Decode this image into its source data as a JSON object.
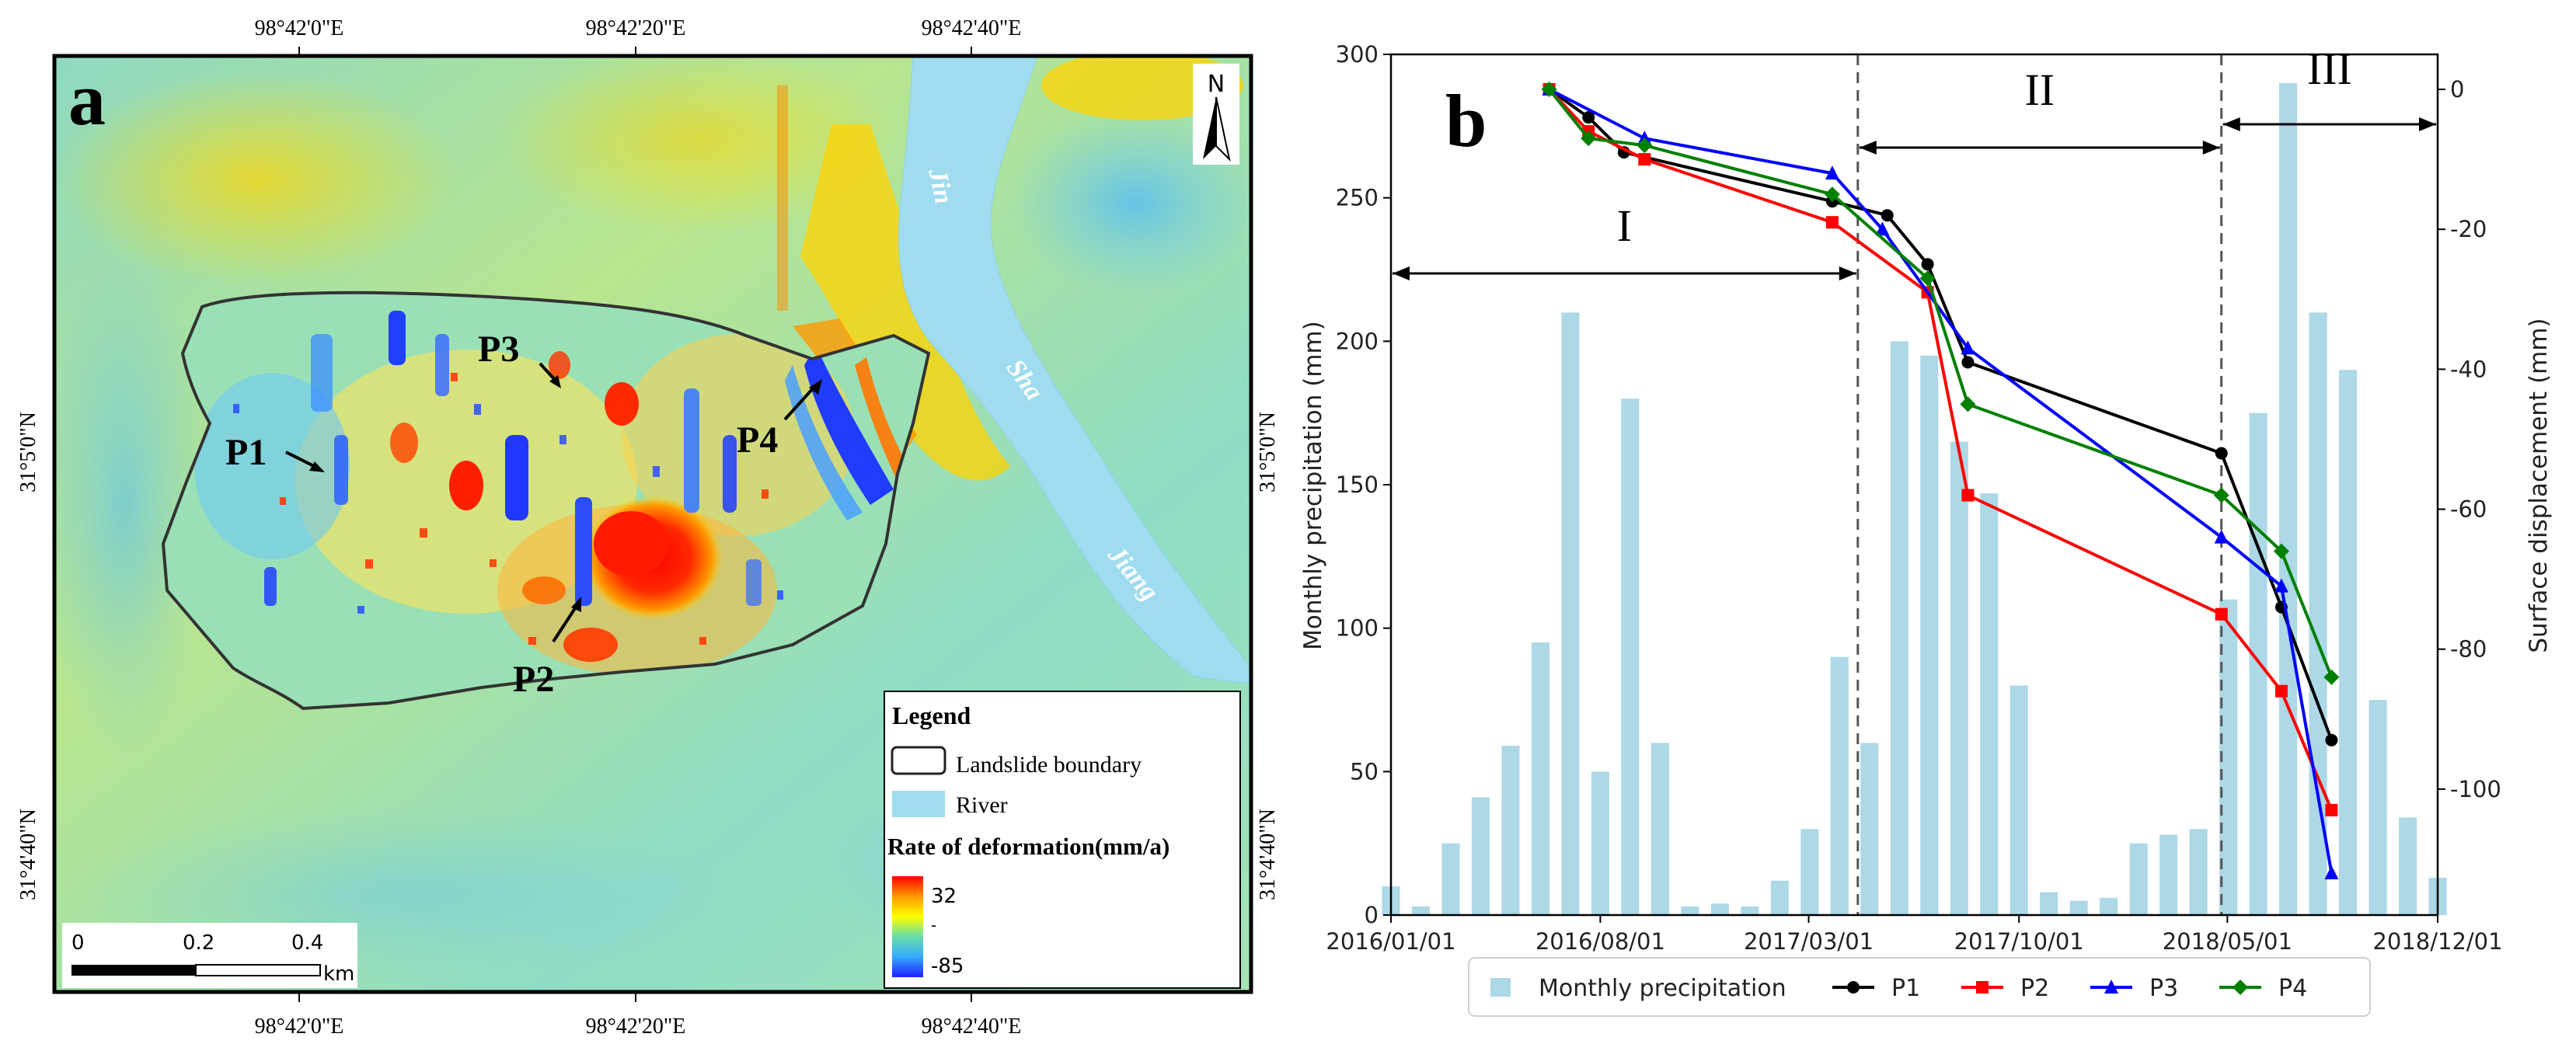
{
  "panel_a": {
    "label": "a",
    "top_lon_ticks": [
      "98°42'0\"E",
      "98°42'20\"E",
      "98°42'40\"E"
    ],
    "bottom_lon_ticks": [
      "98°42'0\"E",
      "98°42'20\"E",
      "98°42'40\"E"
    ],
    "left_lat_ticks": [
      "31°5'0\"N",
      "31°4'40\"N"
    ],
    "right_lat_ticks": [
      "31°5'0\"N",
      "31°4'40\"N"
    ],
    "north_label": "N",
    "river_words": [
      "Jin",
      "Sha",
      "Jiang"
    ],
    "points": [
      "P1",
      "P2",
      "P3",
      "P4"
    ],
    "legend": {
      "title": "Legend",
      "boundary_label": "Landslide boundary",
      "river_label": "River",
      "rate_title": "Rate of deformation(mm/a)",
      "rate_max": "32",
      "rate_min": "-85",
      "rate_mid": "-"
    },
    "scale": {
      "labels": [
        "0",
        "0.2",
        "0.4"
      ],
      "unit": "km"
    },
    "colors": {
      "river": "#9fdcef",
      "boundary": "#333333"
    }
  },
  "chart_data": {
    "type": "bar+line",
    "panel_label": "b",
    "ylabel_left": "Monthly precipitation (mm)",
    "ylabel_right": "Surface displacement (mm)",
    "ylim_left": [
      0,
      300
    ],
    "ylim_right": [
      -118,
      5
    ],
    "left_ticks": [
      "0",
      "50",
      "100",
      "150",
      "200",
      "250",
      "300"
    ],
    "right_ticks": [
      "0",
      "-20",
      "-40",
      "-60",
      "-80",
      "-100"
    ],
    "x_ticks": [
      "2016/01/01",
      "2016/08/01",
      "2017/03/01",
      "2017/10/01",
      "2018/05/01",
      "2018/12/01"
    ],
    "x_start": "2016-01-01",
    "x_end": "2018-12-01",
    "precipitation": {
      "name": "Monthly precipitation",
      "color": "#add8e6",
      "months": [
        "2016-01",
        "2016-02",
        "2016-03",
        "2016-04",
        "2016-05",
        "2016-06",
        "2016-07",
        "2016-08",
        "2016-09",
        "2016-10",
        "2016-11",
        "2016-12",
        "2017-01",
        "2017-02",
        "2017-03",
        "2017-04",
        "2017-05",
        "2017-06",
        "2017-07",
        "2017-08",
        "2017-09",
        "2017-10",
        "2017-11",
        "2017-12",
        "2018-01",
        "2018-02",
        "2018-03",
        "2018-04",
        "2018-05",
        "2018-06",
        "2018-07",
        "2018-08",
        "2018-09",
        "2018-10",
        "2018-11",
        "2018-12"
      ],
      "values": [
        10,
        3,
        25,
        41,
        59,
        95,
        210,
        50,
        180,
        60,
        3,
        4,
        3,
        12,
        30,
        90,
        60,
        200,
        195,
        165,
        147,
        80,
        8,
        5,
        6,
        25,
        28,
        30,
        110,
        175,
        290,
        210,
        190,
        75,
        34,
        13
      ]
    },
    "series": [
      {
        "name": "P1",
        "color": "#000000",
        "marker": "circle",
        "dates": [
          "2016-06-10",
          "2016-07-20",
          "2016-08-25",
          "2017-03-25",
          "2017-05-20",
          "2017-06-30",
          "2017-08-10",
          "2018-04-25",
          "2018-06-25",
          "2018-08-15"
        ],
        "values": [
          0,
          -4,
          -9,
          -16,
          -18,
          -25,
          -39,
          -52,
          -74,
          -93
        ]
      },
      {
        "name": "P2",
        "color": "#ff0000",
        "marker": "square",
        "dates": [
          "2016-06-10",
          "2016-07-20",
          "2016-09-15",
          "2017-03-25",
          "2017-06-30",
          "2017-08-10",
          "2018-04-25",
          "2018-06-25",
          "2018-08-15"
        ],
        "values": [
          0,
          -6,
          -10,
          -19,
          -29,
          -58,
          -75,
          -86,
          -103
        ]
      },
      {
        "name": "P3",
        "color": "#0000ff",
        "marker": "triangle",
        "dates": [
          "2016-06-10",
          "2016-09-15",
          "2017-03-25",
          "2017-05-15",
          "2017-08-10",
          "2018-04-25",
          "2018-06-25",
          "2018-08-15"
        ],
        "values": [
          0,
          -7,
          -12,
          -20,
          -37,
          -64,
          -71,
          -112
        ]
      },
      {
        "name": "P4",
        "color": "#008000",
        "marker": "diamond",
        "dates": [
          "2016-06-10",
          "2016-07-20",
          "2016-09-15",
          "2017-03-25",
          "2017-06-30",
          "2017-08-10",
          "2018-04-25",
          "2018-06-25",
          "2018-08-15"
        ],
        "values": [
          0,
          -7,
          -8,
          -15,
          -27,
          -45,
          -58,
          -66,
          -84
        ]
      }
    ],
    "stages": [
      {
        "label": "I",
        "from": "2016-01-01",
        "to": "2017-04-20"
      },
      {
        "label": "II",
        "from": "2017-04-20",
        "to": "2018-04-25"
      },
      {
        "label": "III",
        "from": "2018-04-25",
        "to": "2018-12-01"
      }
    ],
    "stage_dividers": [
      "2017-04-20",
      "2018-04-25"
    ],
    "legend_entries": [
      "Monthly precipitation",
      "P1",
      "P2",
      "P3",
      "P4"
    ]
  }
}
